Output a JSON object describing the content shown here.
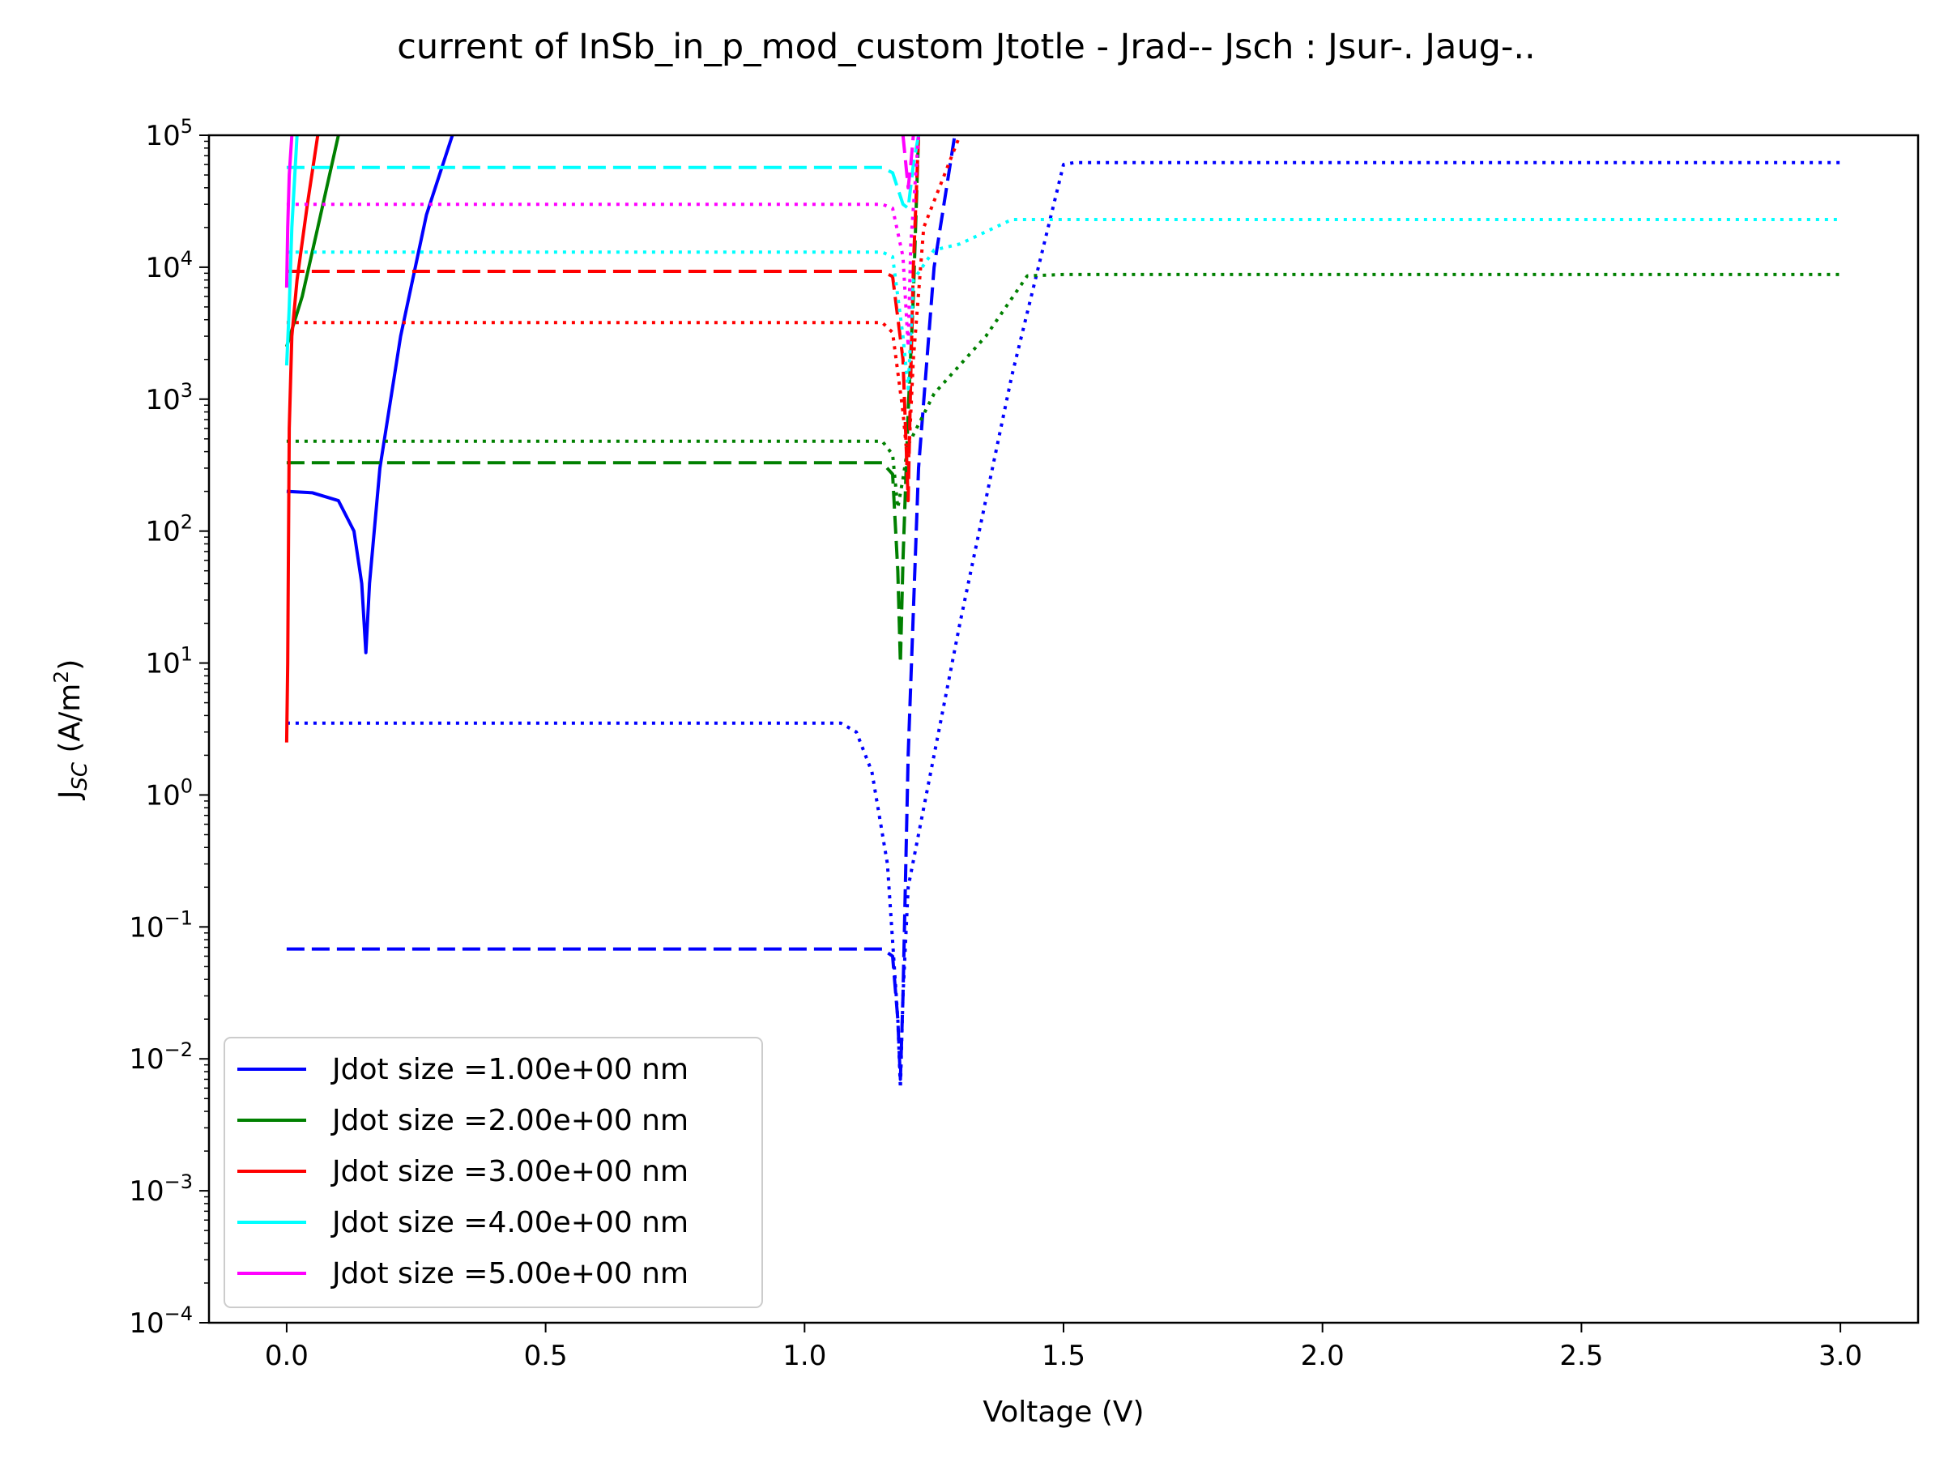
{
  "chart_data": {
    "type": "line",
    "title": "current of InSb_in_p_mod_custom Jtotle - Jrad-- Jsch : Jsur-. Jaug-..",
    "xlabel": "Voltage (V)",
    "ylabel": "J",
    "ylabel_sub": "SC",
    "ylabel_units": "(A/m",
    "ylabel_units_sup": "2",
    "ylabel_units_close": ")",
    "xscale": "linear",
    "yscale": "log",
    "xlim": [
      -0.15,
      3.15
    ],
    "ylim": [
      0.0001,
      100000
    ],
    "grid": false,
    "legend_position": "lower-left",
    "x_ticks": [
      {
        "value": 0.0,
        "label": "0.0"
      },
      {
        "value": 0.5,
        "label": "0.5"
      },
      {
        "value": 1.0,
        "label": "1.0"
      },
      {
        "value": 1.5,
        "label": "1.5"
      },
      {
        "value": 2.0,
        "label": "2.0"
      },
      {
        "value": 2.5,
        "label": "2.5"
      },
      {
        "value": 3.0,
        "label": "3.0"
      }
    ],
    "y_ticks": [
      {
        "exp": -4,
        "label": "10",
        "sup": "−4"
      },
      {
        "exp": -3,
        "label": "10",
        "sup": "−3"
      },
      {
        "exp": -2,
        "label": "10",
        "sup": "−2"
      },
      {
        "exp": -1,
        "label": "10",
        "sup": "−1"
      },
      {
        "exp": 0,
        "label": "10",
        "sup": "0"
      },
      {
        "exp": 1,
        "label": "10",
        "sup": "1"
      },
      {
        "exp": 2,
        "label": "10",
        "sup": "2"
      },
      {
        "exp": 3,
        "label": "10",
        "sup": "3"
      },
      {
        "exp": 4,
        "label": "10",
        "sup": "4"
      },
      {
        "exp": 5,
        "label": "10",
        "sup": "5"
      }
    ],
    "legend": [
      {
        "label": "Jdot size =1.00e+00 nm",
        "color": "#0000ff"
      },
      {
        "label": "Jdot size =2.00e+00 nm",
        "color": "#008000"
      },
      {
        "label": "Jdot size =3.00e+00 nm",
        "color": "#ff0000"
      },
      {
        "label": "Jdot size =4.00e+00 nm",
        "color": "#00ffff"
      },
      {
        "label": "Jdot size =5.00e+00 nm",
        "color": "#ff00ff"
      }
    ],
    "series": [
      {
        "color": "#0000ff",
        "style": "solid",
        "points": [
          [
            0,
            200
          ],
          [
            0.05,
            195
          ],
          [
            0.1,
            170
          ],
          [
            0.13,
            100
          ],
          [
            0.145,
            40
          ],
          [
            0.153,
            12
          ],
          [
            0.16,
            40
          ],
          [
            0.18,
            300
          ],
          [
            0.22,
            3000
          ],
          [
            0.27,
            25000
          ],
          [
            0.32,
            100000
          ]
        ]
      },
      {
        "color": "#0000ff",
        "style": "dashed",
        "points": [
          [
            0,
            0.068
          ],
          [
            1.15,
            0.068
          ],
          [
            1.17,
            0.06
          ],
          [
            1.18,
            0.02
          ],
          [
            1.185,
            0.007
          ],
          [
            1.19,
            0.03
          ],
          [
            1.2,
            2
          ],
          [
            1.22,
            300
          ],
          [
            1.25,
            10000
          ],
          [
            1.29,
            100000
          ]
        ]
      },
      {
        "color": "#0000ff",
        "style": "dotted",
        "points": [
          [
            0,
            3.5
          ],
          [
            1.07,
            3.5
          ],
          [
            1.1,
            3
          ],
          [
            1.13,
            1.5
          ],
          [
            1.16,
            0.3
          ],
          [
            1.18,
            0.02
          ],
          [
            1.185,
            0.006
          ],
          [
            1.19,
            0.03
          ],
          [
            1.2,
            0.2
          ],
          [
            1.3,
            20
          ],
          [
            1.4,
            1500
          ],
          [
            1.5,
            60000
          ],
          [
            1.52,
            62000
          ],
          [
            3.0,
            62000
          ]
        ]
      },
      {
        "color": "#008000",
        "style": "solid",
        "points": [
          [
            0,
            2500
          ],
          [
            0.03,
            6000
          ],
          [
            0.06,
            20000
          ],
          [
            0.1,
            100000
          ]
        ]
      },
      {
        "color": "#008000",
        "style": "dashed",
        "points": [
          [
            0,
            330
          ],
          [
            1.15,
            330
          ],
          [
            1.17,
            270
          ],
          [
            1.18,
            50
          ],
          [
            1.185,
            10
          ],
          [
            1.19,
            60
          ],
          [
            1.2,
            800
          ],
          [
            1.21,
            6000
          ],
          [
            1.22,
            100000
          ]
        ]
      },
      {
        "color": "#008000",
        "style": "dotted",
        "points": [
          [
            0,
            480
          ],
          [
            1.15,
            480
          ],
          [
            1.17,
            380
          ],
          [
            1.18,
            150
          ],
          [
            1.19,
            250
          ],
          [
            1.2,
            450
          ],
          [
            1.25,
            1100
          ],
          [
            1.35,
            3000
          ],
          [
            1.43,
            8600
          ],
          [
            1.5,
            8800
          ],
          [
            3.0,
            8800
          ]
        ]
      },
      {
        "color": "#ff0000",
        "style": "solid",
        "points": [
          [
            0,
            2.5
          ],
          [
            0.002,
            10
          ],
          [
            0.005,
            600
          ],
          [
            0.01,
            3000
          ],
          [
            0.02,
            8000
          ],
          [
            0.04,
            30000
          ],
          [
            0.06,
            100000
          ]
        ]
      },
      {
        "color": "#ff0000",
        "style": "dashed",
        "points": [
          [
            0,
            9300
          ],
          [
            1.15,
            9300
          ],
          [
            1.17,
            8500
          ],
          [
            1.19,
            2000
          ],
          [
            1.2,
            170
          ],
          [
            1.205,
            1500
          ],
          [
            1.21,
            10000
          ],
          [
            1.22,
            100000
          ]
        ]
      },
      {
        "color": "#ff0000",
        "style": "dotted",
        "points": [
          [
            0,
            3800
          ],
          [
            1.15,
            3800
          ],
          [
            1.17,
            3200
          ],
          [
            1.19,
            800
          ],
          [
            1.2,
            300
          ],
          [
            1.21,
            2000
          ],
          [
            1.23,
            20000
          ],
          [
            1.3,
            100000
          ]
        ]
      },
      {
        "color": "#00ffff",
        "style": "solid",
        "points": [
          [
            0,
            1800
          ],
          [
            0.005,
            5000
          ],
          [
            0.01,
            20000
          ],
          [
            0.02,
            100000
          ]
        ]
      },
      {
        "color": "#00ffff",
        "style": "dashed",
        "points": [
          [
            0,
            57000
          ],
          [
            1.15,
            57000
          ],
          [
            1.17,
            52000
          ],
          [
            1.19,
            30000
          ],
          [
            1.2,
            28000
          ],
          [
            1.21,
            60000
          ],
          [
            1.22,
            100000
          ]
        ]
      },
      {
        "color": "#00ffff",
        "style": "dotted",
        "points": [
          [
            0,
            13000
          ],
          [
            1.15,
            13000
          ],
          [
            1.17,
            12000
          ],
          [
            1.19,
            3000
          ],
          [
            1.2,
            1200
          ],
          [
            1.21,
            8000
          ],
          [
            1.25,
            13500
          ],
          [
            1.3,
            15000
          ],
          [
            1.4,
            23000
          ],
          [
            3.0,
            23000
          ]
        ]
      },
      {
        "color": "#ff00ff",
        "style": "solid",
        "points": [
          [
            0,
            7000
          ],
          [
            0.002,
            20000
          ],
          [
            0.005,
            50000
          ],
          [
            0.01,
            100000
          ]
        ]
      },
      {
        "color": "#ff00ff",
        "style": "dashed",
        "points": [
          [
            1.19,
            100000
          ],
          [
            1.2,
            40000
          ],
          [
            1.205,
            60000
          ],
          [
            1.21,
            100000
          ]
        ]
      },
      {
        "color": "#ff00ff",
        "style": "dotted",
        "points": [
          [
            0,
            30000
          ],
          [
            1.15,
            30000
          ],
          [
            1.17,
            28000
          ],
          [
            1.19,
            12000
          ],
          [
            1.2,
            2500
          ],
          [
            1.205,
            15000
          ],
          [
            1.22,
            100000
          ]
        ]
      }
    ]
  }
}
